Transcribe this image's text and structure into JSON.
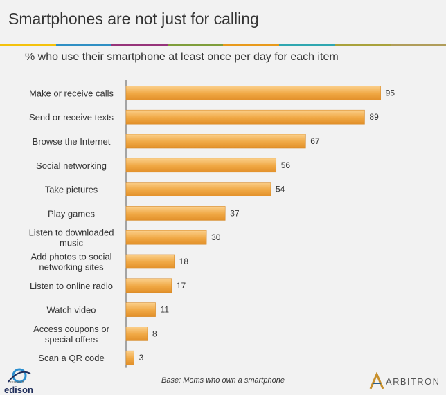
{
  "header": {
    "title": "Smartphones are not just for calling",
    "subtitle": "% who use their smartphone at least once per day for each item",
    "stripe_colors": [
      "#f4c20d",
      "#2f8fc4",
      "#96347a",
      "#7f9e3b",
      "#e89a1c",
      "#2fa7b0",
      "#a9a23c",
      "#b09d5a"
    ]
  },
  "chart_data": {
    "type": "bar",
    "orientation": "horizontal",
    "categories": [
      [
        "Make or receive calls"
      ],
      [
        "Send or receive texts"
      ],
      [
        "Browse the Internet"
      ],
      [
        "Social networking"
      ],
      [
        "Take pictures"
      ],
      [
        "Play games"
      ],
      [
        "Listen to downloaded",
        "music"
      ],
      [
        "Add photos to social",
        "networking sites"
      ],
      [
        "Listen to online radio"
      ],
      [
        "Watch video"
      ],
      [
        "Access coupons or",
        "special offers"
      ],
      [
        "Scan a QR code"
      ]
    ],
    "values": [
      95,
      89,
      67,
      56,
      54,
      37,
      30,
      18,
      17,
      11,
      8,
      3
    ],
    "xlim": [
      0,
      100
    ],
    "bar_color": "#f0a844",
    "bar_color_light": "#fbd08c",
    "bar_color_dark": "#e2902a"
  },
  "footer": {
    "footnote": "Base: Moms who own a smartphone",
    "logo_left": "edison",
    "logo_left_sub": "research",
    "logo_right": "ARBITRON"
  }
}
